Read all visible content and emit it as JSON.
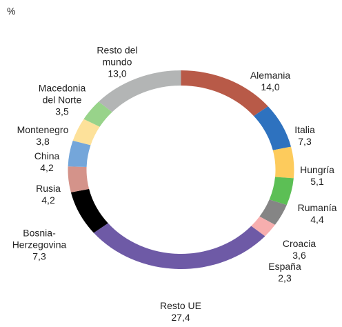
{
  "chart_data": {
    "type": "donut",
    "unit": "%",
    "categories": [
      "Alemania",
      "Italia",
      "Hungría",
      "Rumanía",
      "Croacia",
      "España",
      "Resto UE",
      "Bosnia-Herzegovina",
      "Rusia",
      "China",
      "Montenegro",
      "Macedonia del Norte",
      "Resto del mundo"
    ],
    "values": [
      14.0,
      7.3,
      5.1,
      4.4,
      3.6,
      2.3,
      27.4,
      7.3,
      4.2,
      4.2,
      3.8,
      3.5,
      13.0
    ],
    "value_labels": [
      "14,0",
      "7,3",
      "5,1",
      "4,4",
      "3,6",
      "2,3",
      "27,4",
      "7,3",
      "4,2",
      "4,2",
      "3,8",
      "3,5",
      "13,0"
    ],
    "colors": [
      "#b85a48",
      "#2e72bf",
      "#fdcb5c",
      "#5cbf55",
      "#858585",
      "#f7aeae",
      "#6e5aa6",
      "#000000",
      "#d4938a",
      "#74a6da",
      "#fde19a",
      "#98d38a",
      "#b3b5b5"
    ]
  }
}
